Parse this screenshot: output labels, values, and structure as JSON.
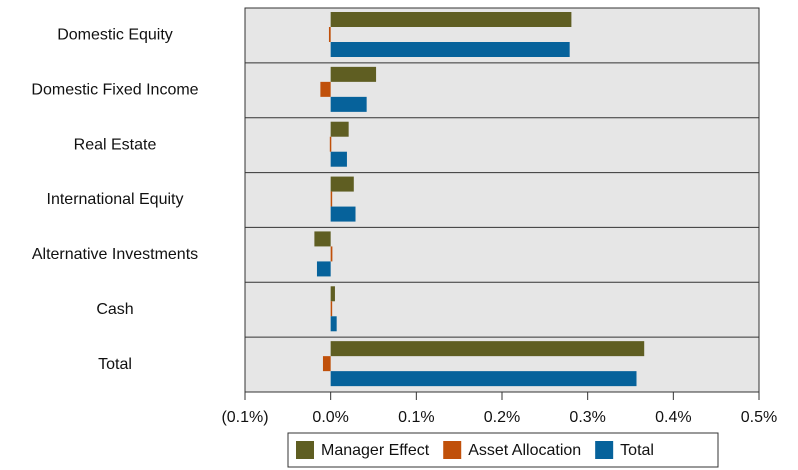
{
  "chart_data": {
    "type": "bar",
    "orientation": "horizontal",
    "categories": [
      "Domestic Equity",
      "Domestic Fixed Income",
      "Real Estate",
      "International Equity",
      "Alternative Investments",
      "Cash",
      "Total"
    ],
    "series": [
      {
        "name": "Manager Effect",
        "color": "#5f5e22",
        "values": [
          0.281,
          0.053,
          0.021,
          0.027,
          -0.019,
          0.005,
          0.366
        ]
      },
      {
        "name": "Asset Allocation",
        "color": "#c0500a",
        "values": [
          -0.002,
          -0.012,
          -0.001,
          0.001,
          0.002,
          0.001,
          -0.009
        ]
      },
      {
        "name": "Total",
        "color": "#06629b",
        "values": [
          0.279,
          0.042,
          0.019,
          0.029,
          -0.016,
          0.007,
          0.357
        ]
      }
    ],
    "xlim": [
      -0.1,
      0.5
    ],
    "xticks": [
      {
        "value": -0.1,
        "label": "(0.1%)"
      },
      {
        "value": 0,
        "label": "0.0%"
      },
      {
        "value": 0.1,
        "label": "0.1%"
      },
      {
        "value": 0.2,
        "label": "0.2%"
      },
      {
        "value": 0.3,
        "label": "0.3%"
      },
      {
        "value": 0.4,
        "label": "0.4%"
      },
      {
        "value": 0.5,
        "label": "0.5%"
      }
    ],
    "negative_tick_color": "#e31a1c",
    "background": "#e6e6e6",
    "legend": "bottom"
  }
}
